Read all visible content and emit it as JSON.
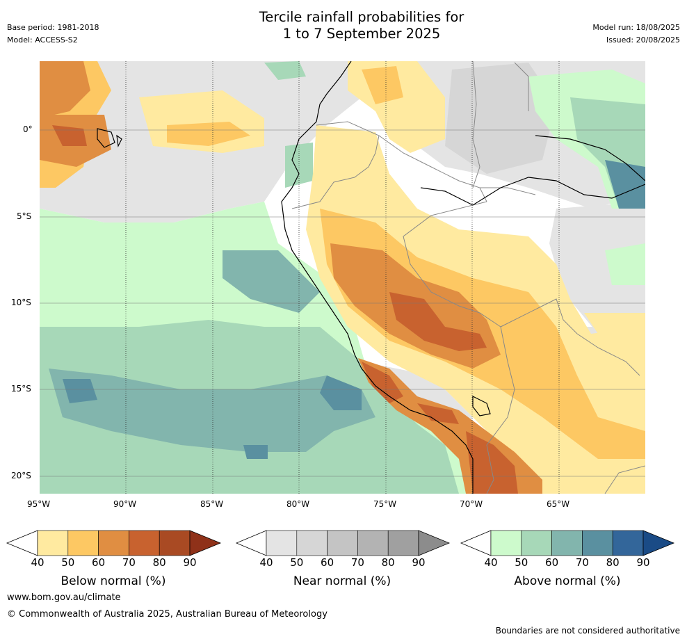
{
  "header": {
    "title_line1": "Tercile rainfall probabilities for",
    "title_line2": "1 to 7 September 2025",
    "base_period": "Base period: 1981-2018",
    "model": "Model: ACCESS-S2",
    "model_run": "Model run: 18/08/2025",
    "issued": "Issued: 20/08/2025"
  },
  "map": {
    "lon_labels": [
      "95°W",
      "90°W",
      "85°W",
      "80°W",
      "75°W",
      "70°W",
      "65°W"
    ],
    "lat_labels": [
      "0°",
      "5°S",
      "10°S",
      "15°S",
      "20°S"
    ]
  },
  "colorbars": [
    {
      "label": "Below normal (%)",
      "ticks": [
        "40",
        "50",
        "60",
        "70",
        "80",
        "90"
      ],
      "colors": [
        "#ffeaa0",
        "#fdc863",
        "#e08e42",
        "#c8622f",
        "#a94a23",
        "#8f3119"
      ]
    },
    {
      "label": "Near normal (%)",
      "ticks": [
        "40",
        "50",
        "60",
        "70",
        "80",
        "90"
      ],
      "colors": [
        "#e4e4e4",
        "#d6d6d6",
        "#c4c4c4",
        "#b3b3b3",
        "#a0a0a0",
        "#8c8c8c"
      ]
    },
    {
      "label": "Above normal (%)",
      "ticks": [
        "40",
        "50",
        "60",
        "70",
        "80",
        "90"
      ],
      "colors": [
        "#cdfacc",
        "#a7d8b8",
        "#82b5ad",
        "#5a90a0",
        "#33669a",
        "#1a4b86"
      ]
    }
  ],
  "footer": {
    "website": "www.bom.gov.au/climate",
    "copyright": "© Commonwealth of Australia 2025, Australian Bureau of Meteorology",
    "disclaimer": "Boundaries are not considered authoritative"
  }
}
